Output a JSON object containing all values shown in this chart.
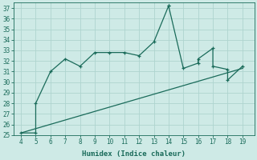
{
  "xlabel": "Humidex (Indice chaleur)",
  "curve1_x": [
    4,
    5,
    5,
    6,
    7,
    8,
    9,
    10,
    11,
    12,
    13,
    14,
    14,
    15,
    16,
    16,
    17,
    17,
    18,
    18,
    19
  ],
  "curve1_y": [
    25.2,
    25.2,
    28.0,
    31.0,
    32.2,
    31.5,
    32.8,
    32.8,
    32.8,
    32.5,
    33.8,
    37.2,
    37.2,
    31.3,
    31.8,
    32.2,
    33.2,
    31.5,
    31.2,
    30.2,
    31.5
  ],
  "curve2_x": [
    4,
    19
  ],
  "curve2_y": [
    25.2,
    31.3
  ],
  "line_color": "#1a6b5a",
  "bg_color": "#ceeae6",
  "grid_color": "#aed4cf",
  "xlim": [
    3.5,
    19.8
  ],
  "ylim": [
    25.0,
    37.5
  ],
  "xticks": [
    4,
    5,
    6,
    7,
    8,
    9,
    10,
    11,
    12,
    13,
    14,
    15,
    16,
    17,
    18,
    19
  ],
  "yticks": [
    25,
    26,
    27,
    28,
    29,
    30,
    31,
    32,
    33,
    34,
    35,
    36,
    37
  ]
}
